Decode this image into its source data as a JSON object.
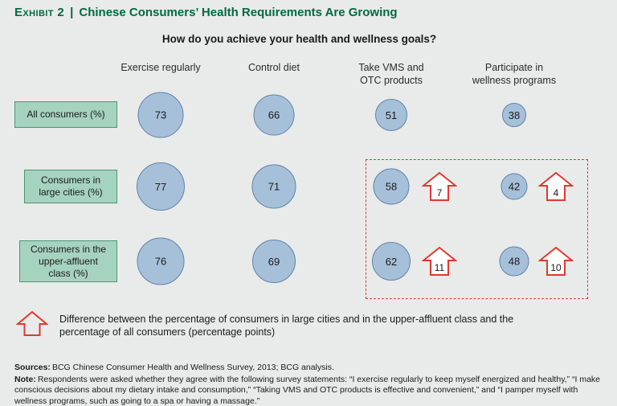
{
  "header": {
    "exhibit_label": "Exhibit 2",
    "separator": "|",
    "title": "Chinese Consumers’ Health Requirements Are Growing"
  },
  "chart_data": {
    "type": "bubble",
    "title": "How do you achieve your health and wellness goals?",
    "columns": [
      "Exercise regularly",
      "Control diet",
      "Take VMS and OTC products",
      "Participate in wellness programs"
    ],
    "rows": [
      {
        "label": "All consumers (%)",
        "values": [
          73,
          66,
          51,
          38
        ],
        "differences": [
          null,
          null,
          null,
          null
        ]
      },
      {
        "label": "Consumers in large cities (%)",
        "values": [
          77,
          71,
          58,
          42
        ],
        "differences": [
          null,
          null,
          7,
          4
        ]
      },
      {
        "label": "Consumers in the upper-affluent class (%)",
        "values": [
          76,
          69,
          62,
          48
        ],
        "differences": [
          null,
          null,
          11,
          10
        ]
      }
    ],
    "legend": "Difference between the percentage of consumers in large cities and in the upper-affluent class and the percentage of all consumers (percentage points)",
    "layout_hints": {
      "bubble_size": "proportional to value",
      "highlight_box": "dashed red box around last two columns of bottom two rows"
    }
  },
  "footer": {
    "sources_label": "Sources:",
    "sources_text": "BCG Chinese Consumer Health and Wellness Survey, 2013; BCG analysis.",
    "note_label": "Note:",
    "note_text": "Respondents were asked whether they agree with the following survey statements: “I exercise regularly to keep myself energized and healthy,” “I make conscious decisions about my dietary intake and consumption,” “Taking VMS and OTC products is effective and convenient,” and “I pamper myself with wellness programs, such as going to a spa or having a massage.”"
  },
  "colors": {
    "background": "#e9eaea",
    "title_green": "#006a43",
    "row_label_bg": "#a6d3c0",
    "row_label_border": "#4a9678",
    "bubble_fill": "#a7c0d9",
    "bubble_border": "#5f83a8",
    "arrow_red": "#e0392e"
  }
}
